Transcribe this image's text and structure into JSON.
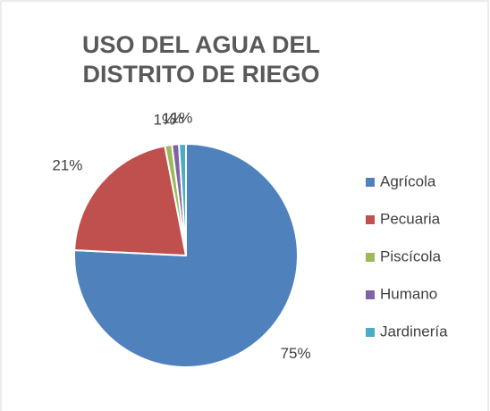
{
  "chart_data": {
    "type": "pie",
    "title": "USO DEL AGUA DEL DISTRITO DE RIEGO",
    "categories": [
      "Agrícola",
      "Pecuaria",
      "Piscícola",
      "Humano",
      "Jardinería"
    ],
    "values": [
      75,
      21,
      1,
      1,
      1
    ],
    "value_labels": [
      "75%",
      "21%",
      "1%",
      "1%",
      "1%"
    ],
    "colors": [
      "#4f81bd",
      "#c0504d",
      "#9bbb59",
      "#8064a2",
      "#4bacc6"
    ],
    "legend": "right"
  }
}
